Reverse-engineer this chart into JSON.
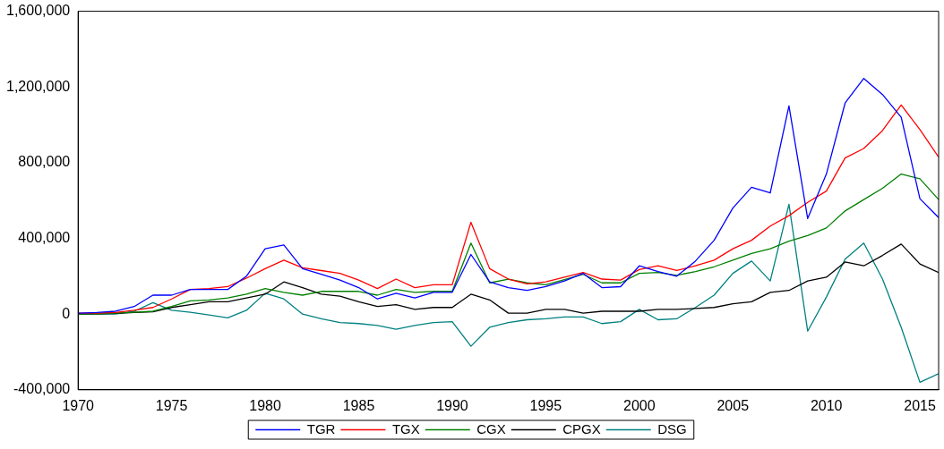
{
  "chart_data": {
    "type": "line",
    "x": [
      1970,
      1971,
      1972,
      1973,
      1974,
      1975,
      1976,
      1977,
      1978,
      1979,
      1980,
      1981,
      1982,
      1983,
      1984,
      1985,
      1986,
      1987,
      1988,
      1989,
      1990,
      1991,
      1992,
      1993,
      1994,
      1995,
      1996,
      1997,
      1998,
      1999,
      2000,
      2001,
      2002,
      2003,
      2004,
      2005,
      2006,
      2007,
      2008,
      2009,
      2010,
      2011,
      2012,
      2013,
      2014,
      2015,
      2016
    ],
    "series": [
      {
        "name": "TGR",
        "color": "#0000ff",
        "values": [
          5000,
          8000,
          15000,
          40000,
          100000,
          100000,
          130000,
          130000,
          130000,
          200000,
          345000,
          365000,
          240000,
          210000,
          180000,
          140000,
          80000,
          110000,
          85000,
          115000,
          115000,
          315000,
          170000,
          140000,
          125000,
          145000,
          175000,
          215000,
          140000,
          145000,
          255000,
          225000,
          200000,
          280000,
          390000,
          560000,
          670000,
          640000,
          1100000,
          505000,
          740000,
          1115000,
          1245000,
          1160000,
          1040000,
          610000,
          510000
        ]
      },
      {
        "name": "TGX",
        "color": "#ff0000",
        "values": [
          5000,
          5000,
          8000,
          20000,
          35000,
          80000,
          130000,
          135000,
          145000,
          190000,
          240000,
          285000,
          245000,
          230000,
          215000,
          180000,
          135000,
          185000,
          140000,
          155000,
          155000,
          485000,
          240000,
          185000,
          160000,
          170000,
          195000,
          220000,
          185000,
          180000,
          235000,
          255000,
          230000,
          255000,
          285000,
          345000,
          390000,
          465000,
          520000,
          590000,
          650000,
          825000,
          875000,
          970000,
          1105000,
          975000,
          830000
        ]
      },
      {
        "name": "CGX",
        "color": "#008000",
        "values": [
          0,
          2000,
          5000,
          10000,
          15000,
          40000,
          70000,
          75000,
          85000,
          105000,
          135000,
          115000,
          100000,
          120000,
          120000,
          120000,
          100000,
          130000,
          115000,
          120000,
          120000,
          375000,
          165000,
          185000,
          165000,
          155000,
          182000,
          210000,
          165000,
          165000,
          215000,
          220000,
          205000,
          225000,
          250000,
          285000,
          320000,
          345000,
          385000,
          415000,
          455000,
          545000,
          605000,
          665000,
          740000,
          715000,
          605000
        ]
      },
      {
        "name": "CPGX",
        "color": "#000000",
        "values": [
          0,
          2000,
          4000,
          8000,
          12000,
          35000,
          50000,
          65000,
          65000,
          85000,
          105000,
          170000,
          140000,
          105000,
          95000,
          65000,
          40000,
          50000,
          25000,
          35000,
          35000,
          105000,
          75000,
          5000,
          5000,
          25000,
          25000,
          5000,
          15000,
          15000,
          15000,
          25000,
          25000,
          30000,
          35000,
          55000,
          65000,
          115000,
          125000,
          175000,
          195000,
          275000,
          255000,
          310000,
          370000,
          265000,
          220000
        ]
      },
      {
        "name": "DSG",
        "color": "#008080",
        "values": [
          0,
          0,
          0,
          15000,
          60000,
          20000,
          10000,
          -5000,
          -20000,
          20000,
          110000,
          80000,
          0,
          -25000,
          -45000,
          -50000,
          -60000,
          -80000,
          -60000,
          -45000,
          -40000,
          -170000,
          -70000,
          -45000,
          -30000,
          -25000,
          -15000,
          -15000,
          -50000,
          -40000,
          25000,
          -30000,
          -25000,
          35000,
          100000,
          215000,
          280000,
          175000,
          580000,
          -90000,
          90000,
          290000,
          375000,
          185000,
          -70000,
          -360000,
          -315000
        ]
      }
    ],
    "xlim": [
      1970,
      2016
    ],
    "xticks": [
      1970,
      1975,
      1980,
      1985,
      1990,
      1995,
      2000,
      2005,
      2010,
      2015
    ],
    "ylim": [
      -400000,
      1600000
    ],
    "yticks": [
      {
        "value": -400000,
        "label": "-400,000"
      },
      {
        "value": 0,
        "label": "0"
      },
      {
        "value": 400000,
        "label": "400,000"
      },
      {
        "value": 800000,
        "label": "800,000"
      },
      {
        "value": 1200000,
        "label": "1,200,000"
      },
      {
        "value": 1600000,
        "label": "1,600,000"
      }
    ],
    "legend": "bottom",
    "line_style": "solid"
  }
}
